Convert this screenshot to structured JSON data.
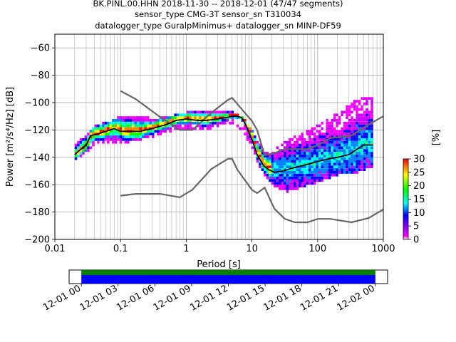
{
  "title": {
    "line1": "BK.PINL.00.HHN   2018-11-30 -- 2018-12-01  (47/47 segments)",
    "line2": "sensor_type CMG-3T sensor_sn T310034",
    "line3": "datalogger_type GuralpMinimus+ datalogger_sn MINP-DF59"
  },
  "colors": {
    "mean_curve": "#000000",
    "noise_models": "#666666",
    "grid": "#b0b0b0",
    "coverage_green": "#008000",
    "coverage_blue": "#0000ff",
    "colormap": [
      "#ffffff",
      "#ff00ff",
      "#0000ff",
      "#00ffff",
      "#00ff00",
      "#ffff00",
      "#ff8000",
      "#ff0000"
    ]
  },
  "chart_data": [
    {
      "type": "heatmap",
      "xlabel": "Period [s]",
      "ylabel": "Power [m²/s⁴/Hz] [dB]",
      "x_scale": "log",
      "xlim": [
        0.01,
        1000
      ],
      "ylim": [
        -200,
        -50
      ],
      "x_ticks": [
        0.01,
        0.1,
        1,
        10,
        100,
        1000
      ],
      "x_tick_labels": [
        "0.01",
        "0.1",
        "1",
        "10",
        "100",
        "1000"
      ],
      "y_ticks": [
        -200,
        -180,
        -160,
        -140,
        -120,
        -100,
        -80,
        -60
      ],
      "y_tick_labels": [
        "−200",
        "−180",
        "−160",
        "−140",
        "−120",
        "−100",
        "−80",
        "−60"
      ],
      "grid": true,
      "colorbar": {
        "label": "[%]",
        "range": [
          0,
          30
        ],
        "ticks": [
          0,
          5,
          10,
          15,
          20,
          25,
          30
        ],
        "tick_labels": [
          "0",
          "5",
          "10",
          "15",
          "20",
          "25",
          "30"
        ]
      },
      "mean_psd": {
        "periods": [
          0.02,
          0.025,
          0.03,
          0.035,
          0.045,
          0.06,
          0.08,
          0.1,
          0.15,
          0.2,
          0.3,
          0.5,
          0.7,
          1,
          1.5,
          2,
          3,
          4,
          5,
          6,
          7,
          8,
          10,
          12,
          15,
          18,
          22,
          30,
          40,
          60,
          100,
          150,
          200,
          300,
          400,
          500,
          700
        ],
        "power_db": [
          -138,
          -134,
          -131,
          -124,
          -123,
          -121,
          -119,
          -121,
          -121,
          -121,
          -119,
          -116,
          -113,
          -112,
          -113,
          -113,
          -112,
          -111,
          -110,
          -110,
          -111,
          -116,
          -127,
          -138,
          -146,
          -149,
          -151,
          -150,
          -148,
          -146,
          -143,
          -141,
          -140,
          -138,
          -134,
          -131,
          -131
        ]
      },
      "psd_distribution_band": {
        "periods": [
          0.02,
          0.025,
          0.03,
          0.04,
          0.06,
          0.1,
          0.2,
          0.3,
          0.5,
          1,
          2,
          3,
          5,
          7,
          10,
          12,
          15,
          20,
          30,
          50,
          100,
          200,
          400,
          700
        ],
        "upper_db": [
          -131,
          -127,
          -124,
          -117,
          -115,
          -111,
          -110,
          -113,
          -111,
          -108,
          -107,
          -108,
          -108,
          -112,
          -122,
          -130,
          -137,
          -136,
          -130,
          -124,
          -117,
          -108,
          -98,
          -96
        ],
        "lower_db": [
          -141,
          -139,
          -136,
          -130,
          -129,
          -129,
          -126,
          -124,
          -121,
          -118,
          -119,
          -116,
          -114,
          -120,
          -134,
          -144,
          -154,
          -160,
          -165,
          -162,
          -157,
          -152,
          -150,
          -146
        ]
      },
      "noise_models": [
        {
          "periods": [
            0.1,
            0.17,
            0.4,
            0.8,
            1.24,
            2.4,
            4.3,
            5,
            6,
            10,
            12,
            15.6,
            21.9,
            31.6,
            45,
            70,
            101,
            154,
            328,
            600,
            1000
          ],
          "power_db": [
            -91.5,
            -97.4,
            -110.5,
            -120,
            -120,
            -107.5,
            -98,
            -96.5,
            -101,
            -113.5,
            -120,
            -138.5,
            -137,
            -134,
            -134,
            -134,
            -131,
            -126,
            -124,
            -116,
            -110
          ]
        },
        {
          "periods": [
            0.1,
            0.17,
            0.4,
            0.8,
            1.24,
            2.4,
            4.3,
            5,
            6,
            10,
            12,
            15.6,
            21.9,
            31.6,
            45,
            70,
            101,
            154,
            328,
            600,
            1000
          ],
          "power_db": [
            -168,
            -166.7,
            -166.7,
            -169.2,
            -163.7,
            -148.6,
            -141.1,
            -141.1,
            -149,
            -163.8,
            -166.2,
            -162.1,
            -177.5,
            -185,
            -187.5,
            -187.5,
            -185,
            -185,
            -187.5,
            -184.4,
            -178
          ]
        }
      ]
    },
    {
      "type": "bar",
      "name": "data-coverage",
      "x_tick_labels": [
        "12-01 00",
        "12-01 03",
        "12-01 06",
        "12-01 09",
        "12-01 12",
        "12-01 15",
        "12-01 18",
        "12-01 21",
        "12-02 00"
      ],
      "xlim_hours": [
        -1,
        25
      ],
      "data_range_hours": [
        0,
        24
      ],
      "rows": [
        "green",
        "blue"
      ]
    }
  ]
}
